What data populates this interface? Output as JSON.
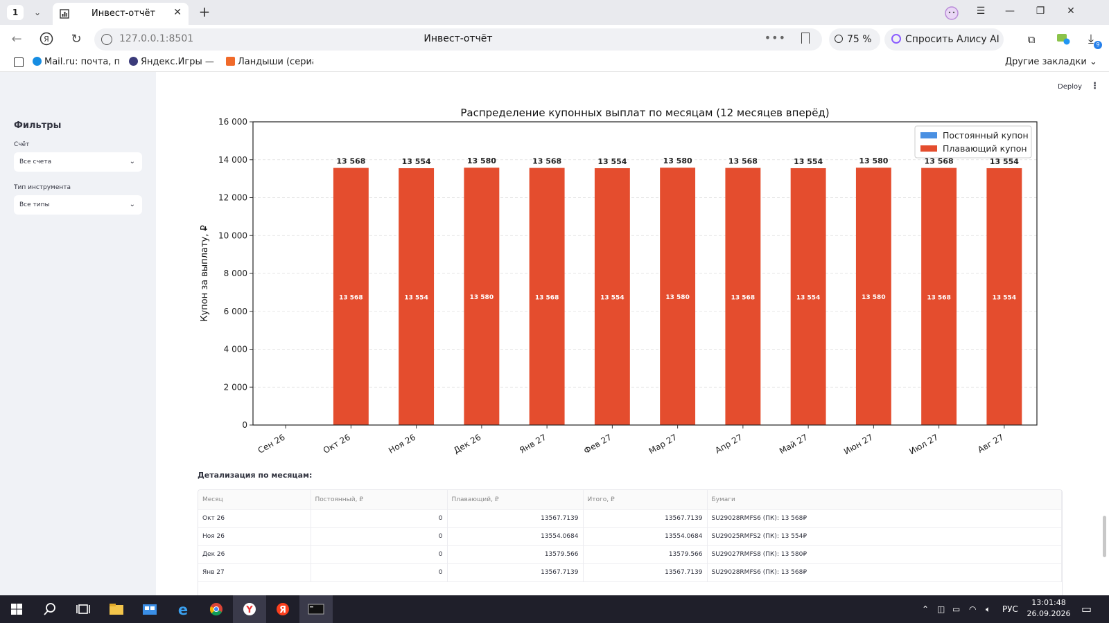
{
  "browser": {
    "tab_count": "1",
    "tab_title": "Инвест-отчёт",
    "url": "127.0.0.1:8501",
    "page_title": "Инвест-отчёт",
    "zoom": "75 %",
    "alice_label": "Спросить Алису AI",
    "downloads_badge": "9",
    "bookmarks": [
      "Mail.ru: почта, пои",
      "Яндекс.Игры — И",
      "Ландыши (сериал"
    ],
    "other_bookmarks": "Другие закладки"
  },
  "sidebar": {
    "title": "Фильтры",
    "account_label": "Счёт",
    "account_value": "Все счета",
    "type_label": "Тип инструмента",
    "type_value": "Все типы"
  },
  "header": {
    "deploy_label": "Deploy"
  },
  "chart_data": {
    "type": "bar",
    "title": "Распределение купонных выплат по месяцам (12 месяцев вперёд)",
    "xlabel": "",
    "ylabel": "Купон за выплату, ₽",
    "ylim": [
      0,
      16000
    ],
    "yticks": [
      "0",
      "2 000",
      "4 000",
      "6 000",
      "8 000",
      "10 000",
      "12 000",
      "14 000",
      "16 000"
    ],
    "categories": [
      "Сен 26",
      "Окт 26",
      "Ноя 26",
      "Дек 26",
      "Янв 27",
      "Фев 27",
      "Мар 27",
      "Апр 27",
      "Май 27",
      "Июн 27",
      "Июл 27",
      "Авг 27"
    ],
    "stacked": true,
    "legend_position": "top-right",
    "grid": true,
    "series": [
      {
        "name": "Постоянный купон",
        "color": "#4a90e2",
        "values": [
          0,
          0,
          0,
          0,
          0,
          0,
          0,
          0,
          0,
          0,
          0,
          0
        ]
      },
      {
        "name": "Плавающий купон",
        "color": "#e44d2e",
        "values": [
          0,
          13568,
          13554,
          13580,
          13568,
          13554,
          13580,
          13568,
          13554,
          13580,
          13568,
          13554
        ]
      }
    ],
    "total_labels": [
      "",
      "13 568",
      "13 554",
      "13 580",
      "13 568",
      "13 554",
      "13 580",
      "13 568",
      "13 554",
      "13 580",
      "13 568",
      "13 554"
    ]
  },
  "details": {
    "title": "Детализация по месяцам:",
    "columns": [
      "Месяц",
      "Постоянный, ₽",
      "Плавающий, ₽",
      "Итого, ₽",
      "Бумаги"
    ],
    "rows": [
      [
        "Окт 26",
        "0",
        "13567.7139",
        "13567.7139",
        "SU29028RMFS6 (ПК): 13 568₽"
      ],
      [
        "Ноя 26",
        "0",
        "13554.0684",
        "13554.0684",
        "SU29025RMFS2 (ПК): 13 554₽"
      ],
      [
        "Дек 26",
        "0",
        "13579.566",
        "13579.566",
        "SU29027RMFS8 (ПК): 13 580₽"
      ],
      [
        "Янв 27",
        "0",
        "13567.7139",
        "13567.7139",
        "SU29028RMFS6 (ПК): 13 568₽"
      ]
    ]
  },
  "taskbar": {
    "lang": "РУС",
    "time": "13:01:48",
    "date": "26.09.2026"
  }
}
